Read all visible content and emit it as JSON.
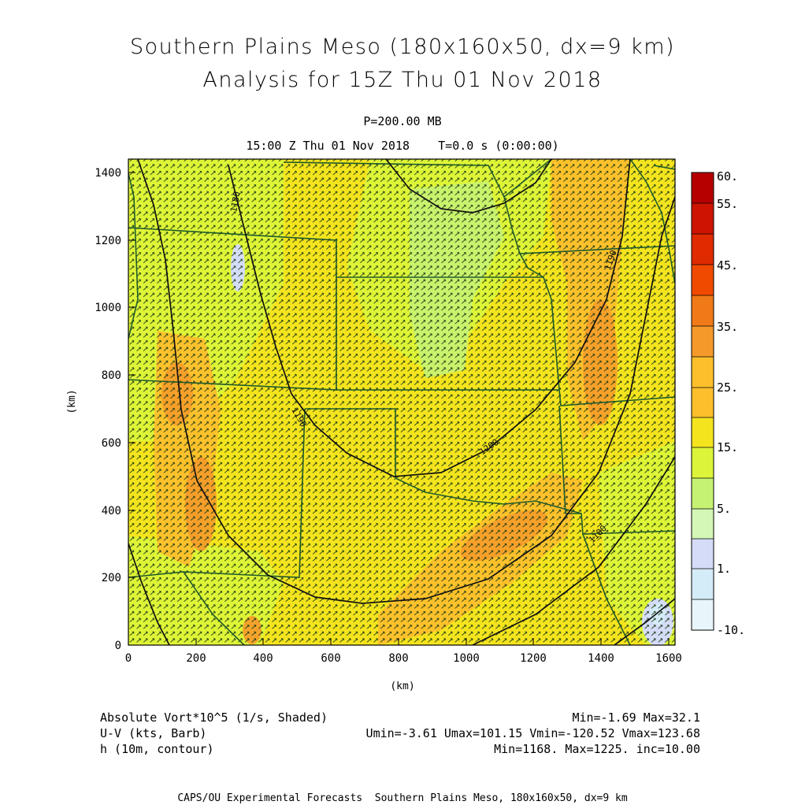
{
  "header": {
    "title_line1": "Southern Plains Meso (180x160x50, dx=9 km)",
    "title_line2": "Analysis for 15Z Thu 01 Nov 2018",
    "level": "P=200.00 MB",
    "valid_time": "15:00 Z Thu 01 Nov 2018    T=0.0 s (0:00:00)"
  },
  "axes": {
    "x_label": "(km)",
    "y_label": "(km)",
    "x_ticks": [
      "0",
      "200",
      "400",
      "600",
      "800",
      "1000",
      "1200",
      "1400",
      "1600"
    ],
    "y_ticks": [
      "0",
      "200",
      "400",
      "600",
      "800",
      "1000",
      "1200",
      "1400"
    ],
    "x_range_km": [
      0,
      1620
    ],
    "y_range_km": [
      0,
      1440
    ]
  },
  "colorbar": {
    "labels": [
      "60.",
      "55.",
      "45.",
      "35.",
      "25.",
      "15.",
      "5.",
      "1.",
      "-10."
    ],
    "colors_top_to_bottom": [
      "#b60000",
      "#cc1400",
      "#e02a00",
      "#f04a00",
      "#f07a18",
      "#f59a2a",
      "#fdbf2c",
      "#f4e41e",
      "#dcf53a",
      "#c6f273",
      "#d4f6b6",
      "#d4dcf8",
      "#d4ebf8",
      "#e8f6fb"
    ]
  },
  "contours": {
    "labels": [
      "1180",
      "1190",
      "1200",
      "1190",
      "1180"
    ]
  },
  "footer": {
    "field1_name": "Absolute Vort*10^5 (1/s, Shaded)",
    "field1_stats": "Min=-1.69 Max=32.1",
    "field2_name": "U-V (kts, Barb)",
    "field2_stats": "Umin=-3.61 Umax=101.15 Vmin=-120.52 Vmax=123.68",
    "field3_name": "h (10m, contour)",
    "field3_stats": "Min=1168. Max=1225. inc=10.00",
    "credit": "CAPS/OU Experimental Forecasts  Southern Plains Meso, 180x160x50, dx=9 km"
  }
}
